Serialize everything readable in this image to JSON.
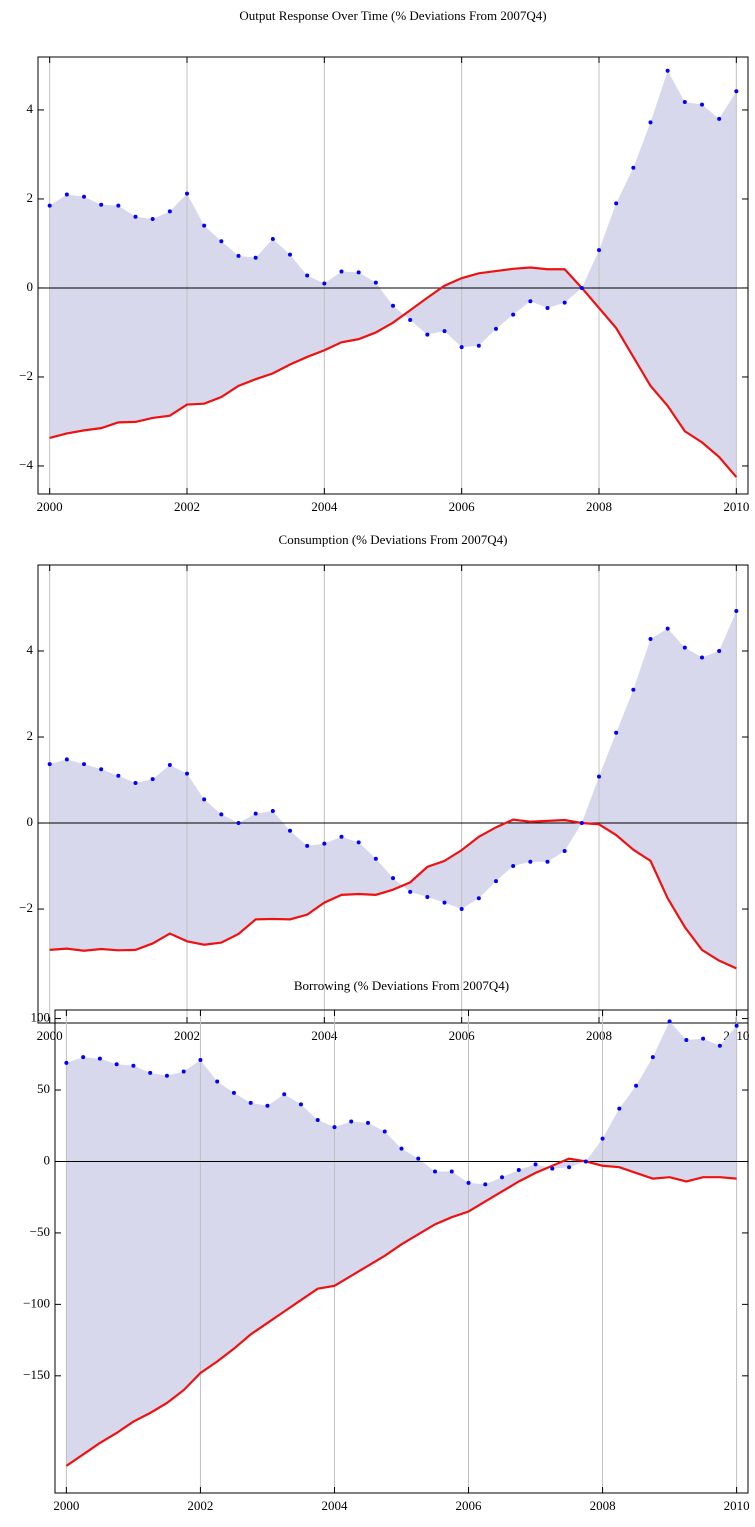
{
  "chart_data": [
    {
      "type": "line",
      "title": "Output Response Over Time (% Deviations From 2007Q4)",
      "x": [
        2000,
        2000.25,
        2000.5,
        2000.75,
        2001,
        2001.25,
        2001.5,
        2001.75,
        2002,
        2002.25,
        2002.5,
        2002.75,
        2003,
        2003.25,
        2003.5,
        2003.75,
        2004,
        2004.25,
        2004.5,
        2004.75,
        2005,
        2005.25,
        2005.5,
        2005.75,
        2006,
        2006.25,
        2006.5,
        2006.75,
        2007,
        2007.25,
        2007.5,
        2007.75,
        2008,
        2008.25,
        2008.5,
        2008.75,
        2009,
        2009.25,
        2009.5,
        2009.75,
        2010
      ],
      "series": [
        {
          "color": "#0000ff",
          "values": [
            1.85,
            2.1,
            2.05,
            1.87,
            1.85,
            1.6,
            1.55,
            1.72,
            2.12,
            1.4,
            1.05,
            0.72,
            0.68,
            1.1,
            0.75,
            0.28,
            0.1,
            0.37,
            0.35,
            0.12,
            -0.4,
            -0.72,
            -1.05,
            -0.97,
            -1.33,
            -1.3,
            -0.92,
            -0.6,
            -0.3,
            -0.45,
            -0.33,
            0.0,
            0.85,
            1.9,
            2.7,
            3.72,
            4.88,
            4.18,
            4.12,
            3.8,
            4.42
          ]
        },
        {
          "color": "#ee1111",
          "values": [
            -3.37,
            -3.27,
            -3.2,
            -3.15,
            -3.02,
            -3.01,
            -2.92,
            -2.87,
            -2.62,
            -2.6,
            -2.45,
            -2.2,
            -2.05,
            -1.92,
            -1.72,
            -1.55,
            -1.4,
            -1.22,
            -1.15,
            -1.0,
            -0.78,
            -0.5,
            -0.22,
            0.05,
            0.22,
            0.33,
            0.38,
            0.43,
            0.46,
            0.42,
            0.42,
            0.0,
            -0.45,
            -0.9,
            -1.55,
            -2.2,
            -2.65,
            -3.22,
            -3.47,
            -3.8,
            -4.25
          ]
        }
      ],
      "xlim": [
        1999.83,
        2010.17
      ],
      "xticks": [
        2000,
        2002,
        2004,
        2006,
        2008,
        2010
      ],
      "ylim": [
        -4.63,
        5.19
      ],
      "yticks": [
        {
          "value": -4,
          "label": "−4"
        },
        {
          "value": -2,
          "label": "−2"
        },
        0,
        2,
        4
      ],
      "grid": true
    },
    {
      "type": "line",
      "title": "Consumption (% Deviations From 2007Q4)",
      "x": [
        2000,
        2000.25,
        2000.5,
        2000.75,
        2001,
        2001.25,
        2001.5,
        2001.75,
        2002,
        2002.25,
        2002.5,
        2002.75,
        2003,
        2003.25,
        2003.5,
        2003.75,
        2004,
        2004.25,
        2004.5,
        2004.75,
        2005,
        2005.25,
        2005.5,
        2005.75,
        2006,
        2006.25,
        2006.5,
        2006.75,
        2007,
        2007.25,
        2007.5,
        2007.75,
        2008,
        2008.25,
        2008.5,
        2008.75,
        2009,
        2009.25,
        2009.5,
        2009.75,
        2010
      ],
      "series": [
        {
          "color": "#0000ff",
          "values": [
            1.37,
            1.48,
            1.37,
            1.25,
            1.1,
            0.93,
            1.02,
            1.35,
            1.15,
            0.55,
            0.2,
            0.0,
            0.22,
            0.28,
            -0.18,
            -0.53,
            -0.48,
            -0.32,
            -0.45,
            -0.83,
            -1.28,
            -1.6,
            -1.72,
            -1.85,
            -2.0,
            -1.75,
            -1.35,
            -1.0,
            -0.9,
            -0.9,
            -0.65,
            0.0,
            1.08,
            2.1,
            3.1,
            4.28,
            4.52,
            4.08,
            3.85,
            4.0,
            4.93
          ]
        },
        {
          "color": "#ee1111",
          "values": [
            -2.95,
            -2.92,
            -2.97,
            -2.93,
            -2.96,
            -2.95,
            -2.8,
            -2.57,
            -2.75,
            -2.83,
            -2.78,
            -2.58,
            -2.24,
            -2.23,
            -2.24,
            -2.13,
            -1.85,
            -1.67,
            -1.65,
            -1.67,
            -1.55,
            -1.38,
            -1.02,
            -0.88,
            -0.63,
            -0.32,
            -0.1,
            0.08,
            0.03,
            0.05,
            0.07,
            0.0,
            -0.03,
            -0.28,
            -0.62,
            -0.88,
            -1.75,
            -2.42,
            -2.95,
            -3.2,
            -3.38
          ]
        }
      ],
      "xlim": [
        1999.83,
        2010.17
      ],
      "xticks": [
        2000,
        2002,
        2004,
        2006,
        2008,
        2010
      ],
      "ylim": [
        -4.65,
        6.0
      ],
      "yticks": [
        {
          "value": -2,
          "label": "−2"
        },
        0,
        2,
        4
      ],
      "grid": true
    },
    {
      "type": "line",
      "title": "Borrowing (% Deviations From 2007Q4)",
      "x": [
        2000,
        2000.25,
        2000.5,
        2000.75,
        2001,
        2001.25,
        2001.5,
        2001.75,
        2002,
        2002.25,
        2002.5,
        2002.75,
        2003,
        2003.25,
        2003.5,
        2003.75,
        2004,
        2004.25,
        2004.5,
        2004.75,
        2005,
        2005.25,
        2005.5,
        2005.75,
        2006,
        2006.25,
        2006.5,
        2006.75,
        2007,
        2007.25,
        2007.5,
        2007.75,
        2008,
        2008.25,
        2008.5,
        2008.75,
        2009,
        2009.25,
        2009.5,
        2009.75,
        2010
      ],
      "series": [
        {
          "color": "#0000ff",
          "values": [
            69,
            73,
            72,
            68,
            67,
            62,
            60,
            63,
            71,
            56,
            48,
            41,
            39,
            47,
            40,
            29,
            24,
            28,
            27,
            21,
            9,
            2,
            -7,
            -7,
            -15,
            -16,
            -11,
            -6,
            -2,
            -5,
            -4,
            0,
            16,
            37,
            53,
            73,
            98,
            85,
            86,
            81,
            95
          ]
        },
        {
          "color": "#ee1111",
          "values": [
            -213,
            -205,
            -197,
            -190,
            -182,
            -176,
            -169,
            -160,
            -148,
            -140,
            -131,
            -121,
            -113,
            -105,
            -97,
            -89,
            -87,
            -80,
            -73,
            -66,
            -58,
            -51,
            -44,
            -39,
            -35,
            -28,
            -21,
            -14,
            -8,
            -3,
            2,
            0,
            -3,
            -4,
            -8,
            -12,
            -11,
            -14,
            -11,
            -11,
            -12
          ]
        }
      ],
      "xlim": [
        1999.83,
        2010.17
      ],
      "xticks": [
        2000,
        2002,
        2004,
        2006,
        2008,
        2010
      ],
      "ylim": [
        -232,
        106
      ],
      "yticks": [
        {
          "value": -150,
          "label": "−150"
        },
        {
          "value": -100,
          "label": "−100"
        },
        {
          "value": -50,
          "label": "−50"
        },
        0,
        50,
        100
      ],
      "grid": true
    }
  ]
}
